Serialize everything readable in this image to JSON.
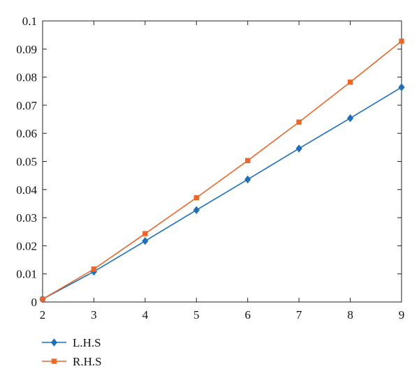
{
  "chart_data": {
    "type": "line",
    "title": "",
    "xlabel": "",
    "ylabel": "",
    "xlim": [
      2,
      9
    ],
    "ylim": [
      0,
      0.1
    ],
    "grid": false,
    "legend_position": "bottom-left",
    "x": [
      2,
      3,
      4,
      5,
      6,
      7,
      8,
      9
    ],
    "x_tick_labels": [
      "2",
      "3",
      "4",
      "5",
      "6",
      "7",
      "8",
      "9"
    ],
    "y_ticks": [
      0,
      0.01,
      0.02,
      0.03,
      0.04,
      0.05,
      0.06,
      0.07,
      0.08,
      0.09,
      0.1
    ],
    "y_tick_labels": [
      "0",
      "0.01",
      "0.02",
      "0.03",
      "0.04",
      "0.05",
      "0.06",
      "0.07",
      "0.08",
      "0.09",
      "0.1"
    ],
    "series": [
      {
        "name": "L.H.S",
        "color": "#1f6fb8",
        "marker": "diamond",
        "values": [
          0.001,
          0.0108,
          0.0217,
          0.0327,
          0.0436,
          0.0546,
          0.0654,
          0.0764
        ]
      },
      {
        "name": "R.H.S",
        "color": "#e8672a",
        "marker": "square",
        "values": [
          0.001,
          0.0117,
          0.0243,
          0.0371,
          0.0503,
          0.064,
          0.0782,
          0.0928
        ]
      }
    ]
  }
}
